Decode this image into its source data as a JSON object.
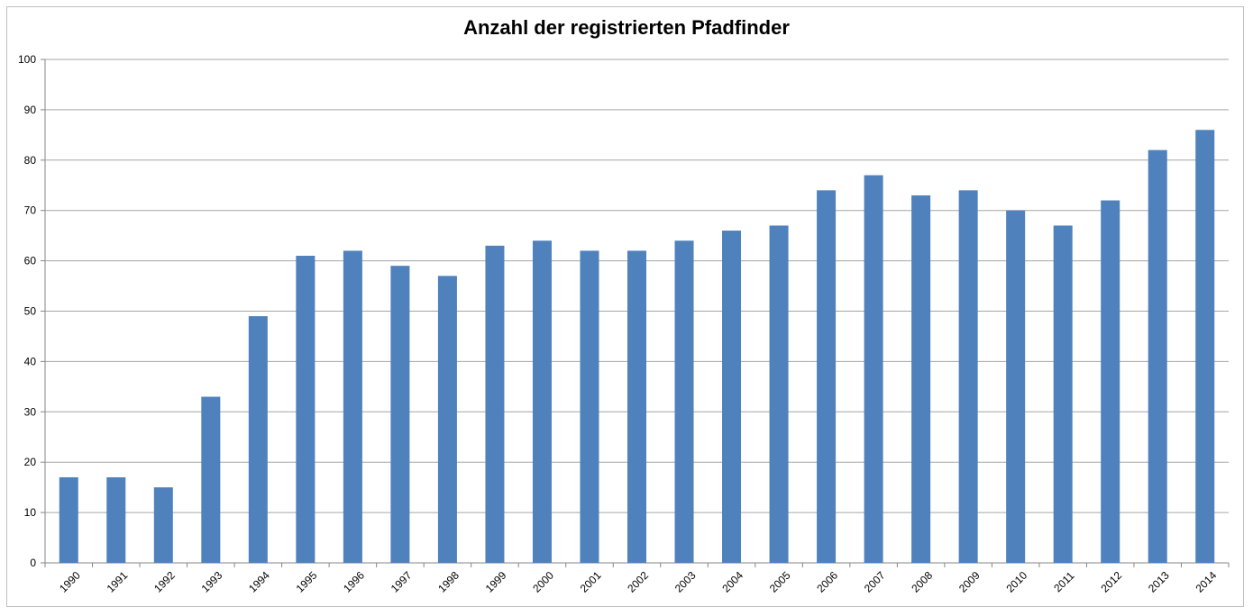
{
  "chart_data": {
    "type": "bar",
    "title": "Anzahl der registrierten Pfadfinder",
    "xlabel": "",
    "ylabel": "",
    "categories": [
      "1990",
      "1991",
      "1992",
      "1993",
      "1994",
      "1995",
      "1996",
      "1997",
      "1998",
      "1999",
      "2000",
      "2001",
      "2002",
      "2003",
      "2004",
      "2005",
      "2006",
      "2007",
      "2008",
      "2009",
      "2010",
      "2011",
      "2012",
      "2013",
      "2014"
    ],
    "values": [
      17,
      17,
      15,
      33,
      49,
      61,
      62,
      59,
      57,
      63,
      64,
      62,
      62,
      64,
      66,
      67,
      74,
      77,
      73,
      74,
      70,
      67,
      72,
      82,
      86
    ],
    "ylim": [
      0,
      100
    ],
    "yticks": [
      0,
      10,
      20,
      30,
      40,
      50,
      60,
      70,
      80,
      90,
      100
    ],
    "grid": true,
    "legend": "none",
    "bar_color": "#4F81BD",
    "grid_color": "#A6A6A6",
    "axis_color": "#868686"
  }
}
